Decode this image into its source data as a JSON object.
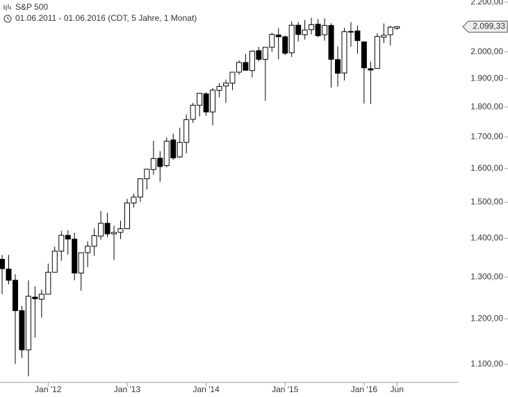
{
  "chart_data": {
    "type": "candlestick",
    "title": "S&P 500",
    "subtitle": "01.06.2011 - 01.06.2016 (CDT, 5 Jahre, 1 Monat)",
    "categories": [
      null,
      null,
      null,
      null,
      null,
      null,
      null,
      "Jan '12",
      null,
      null,
      null,
      null,
      null,
      null,
      null,
      null,
      null,
      null,
      null,
      "Jan '13",
      null,
      null,
      null,
      null,
      null,
      null,
      null,
      null,
      null,
      null,
      null,
      "Jan '14",
      null,
      null,
      null,
      null,
      null,
      null,
      null,
      null,
      null,
      null,
      null,
      "Jan '15",
      null,
      null,
      null,
      null,
      null,
      null,
      null,
      null,
      null,
      null,
      null,
      "Jan '16",
      null,
      null,
      null,
      null,
      "Jun"
    ],
    "series": [
      {
        "name": "S&P 500",
        "up_color": "#ffffff",
        "down_color": "#000000",
        "open": [
          1345,
          1320,
          1292,
          1219,
          1131,
          1251,
          1246,
          1258,
          1312,
          1366,
          1408,
          1398,
          1310,
          1362,
          1379,
          1406,
          1441,
          1412,
          1416,
          1426,
          1498,
          1515,
          1569,
          1597,
          1632,
          1609,
          1690,
          1636,
          1682,
          1758,
          1806,
          1846,
          1783,
          1858,
          1874,
          1884,
          1924,
          1960,
          1930,
          2005,
          1972,
          2018,
          2066,
          2059,
          1997,
          2105,
          2067,
          2087,
          2109,
          2067,
          2104,
          1971,
          1921,
          2080,
          2082,
          2039,
          1937,
          1938,
          2057,
          2067,
          2093
        ],
        "high": [
          1356,
          1356,
          1307,
          1230,
          1292,
          1277,
          1269,
          1334,
          1378,
          1420,
          1422,
          1415,
          1363,
          1392,
          1427,
          1475,
          1470,
          1434,
          1448,
          1510,
          1525,
          1570,
          1598,
          1687,
          1654,
          1698,
          1710,
          1730,
          1775,
          1814,
          1849,
          1851,
          1867,
          1884,
          1897,
          1924,
          1968,
          1992,
          2005,
          2019,
          2018,
          2075,
          2093,
          2064,
          2120,
          2118,
          2126,
          2135,
          2130,
          2133,
          2113,
          2021,
          2094,
          2117,
          2104,
          2039,
          1963,
          2073,
          2112,
          2103,
          2101
        ],
        "low": [
          1258,
          1282,
          1101,
          1114,
          1075,
          1158,
          1203,
          1258,
          1312,
          1341,
          1357,
          1292,
          1267,
          1325,
          1354,
          1396,
          1403,
          1343,
          1398,
          1426,
          1485,
          1501,
          1537,
          1581,
          1560,
          1604,
          1627,
          1633,
          1647,
          1746,
          1768,
          1770,
          1738,
          1834,
          1814,
          1859,
          1915,
          1930,
          1905,
          1964,
          1821,
          2001,
          1972,
          1988,
          1981,
          2040,
          2048,
          2068,
          2057,
          2044,
          1868,
          1872,
          1894,
          2020,
          1993,
          1812,
          1810,
          1937,
          2034,
          2025,
          2086
        ],
        "close": [
          1321,
          1292,
          1219,
          1131,
          1253,
          1247,
          1258,
          1312,
          1366,
          1408,
          1398,
          1310,
          1362,
          1379,
          1407,
          1441,
          1412,
          1416,
          1426,
          1498,
          1515,
          1569,
          1598,
          1631,
          1606,
          1686,
          1633,
          1682,
          1757,
          1806,
          1848,
          1783,
          1859,
          1872,
          1884,
          1924,
          1960,
          1931,
          2003,
          1972,
          2018,
          2068,
          2059,
          1995,
          2105,
          2068,
          2086,
          2107,
          2063,
          2104,
          1972,
          1920,
          2079,
          2080,
          2044,
          1940,
          1932,
          2060,
          2065,
          2097,
          2099.33
        ]
      }
    ],
    "price_tag": {
      "value": 2099.33,
      "label": "2.099,33"
    },
    "log_scale": true,
    "ylim": [
      1064,
      2209
    ],
    "yticks": [
      {
        "value": 1100,
        "label": "1.100,00"
      },
      {
        "value": 1200,
        "label": "1.200,00"
      },
      {
        "value": 1300,
        "label": "1.300,00"
      },
      {
        "value": 1400,
        "label": "1.400,00"
      },
      {
        "value": 1500,
        "label": "1.500,00"
      },
      {
        "value": 1600,
        "label": "1.600,00"
      },
      {
        "value": 1700,
        "label": "1.700,00"
      },
      {
        "value": 1800,
        "label": "1.800,00"
      },
      {
        "value": 1900,
        "label": "1.900,00"
      },
      {
        "value": 2000,
        "label": "2.000,00"
      },
      {
        "value": 2100,
        "label": "2.100,00"
      },
      {
        "value": 2200,
        "label": "2.200,00"
      }
    ]
  }
}
